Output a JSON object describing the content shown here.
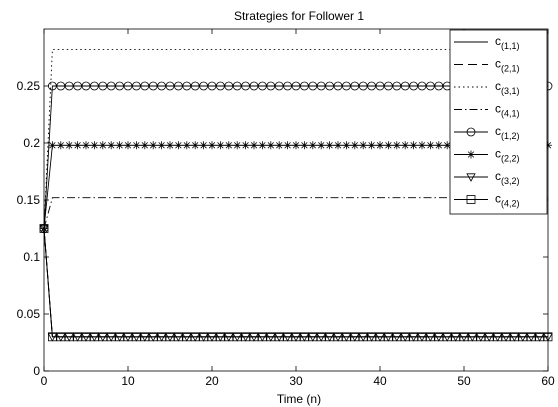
{
  "chart_data": {
    "type": "line",
    "title": "Strategies for Follower 1",
    "xlabel": "Time (n)",
    "ylabel": "",
    "xlim": [
      0,
      60
    ],
    "ylim": [
      0,
      0.3
    ],
    "xticks": [
      "0",
      "10",
      "20",
      "30",
      "40",
      "50",
      "60"
    ],
    "yticks": [
      "0",
      "0.05",
      "0.1",
      "0.15",
      "0.2",
      "0.25"
    ],
    "grid": false,
    "legend_position": "top-right",
    "x_start": 0,
    "x_end": 60,
    "series": [
      {
        "name": "c(1,1)",
        "base": "c",
        "sub": "(1,1)",
        "start": 0.125,
        "steady": 0.03,
        "dash": "",
        "marker": "none"
      },
      {
        "name": "c(2,1)",
        "base": "c",
        "sub": "(2,1)",
        "start": 0.125,
        "steady": 0.03,
        "dash": "9,5",
        "marker": "none"
      },
      {
        "name": "c(3,1)",
        "base": "c",
        "sub": "(3,1)",
        "start": 0.125,
        "steady": 0.282,
        "dash": "1.5,3",
        "marker": "none"
      },
      {
        "name": "c(4,1)",
        "base": "c",
        "sub": "(4,1)",
        "start": 0.125,
        "steady": 0.152,
        "dash": "8,3,1.5,3",
        "marker": "none"
      },
      {
        "name": "c(1,2)",
        "base": "c",
        "sub": "(1,2)",
        "start": 0.125,
        "steady": 0.25,
        "dash": "",
        "marker": "circle"
      },
      {
        "name": "c(2,2)",
        "base": "c",
        "sub": "(2,2)",
        "start": 0.125,
        "steady": 0.198,
        "dash": "",
        "marker": "star"
      },
      {
        "name": "c(3,2)",
        "base": "c",
        "sub": "(3,2)",
        "start": 0.125,
        "steady": 0.03,
        "dash": "",
        "marker": "triangle"
      },
      {
        "name": "c(4,2)",
        "base": "c",
        "sub": "(4,2)",
        "start": 0.125,
        "steady": 0.03,
        "dash": "",
        "marker": "square"
      }
    ]
  }
}
